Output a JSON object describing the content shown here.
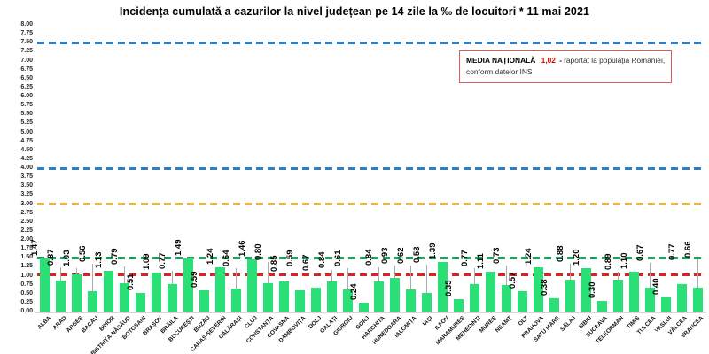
{
  "title": "Incidența cumulată a cazurilor la nivel județean pe 14 zile la ‰ de locuitori *  11 mai 2021",
  "legend": {
    "label": "MEDIA NAȚIONALĂ",
    "value": "1,02",
    "separator": "-",
    "text_line1": "raportat la populația României,",
    "text_line2": "conform datelor INS"
  },
  "chart_data": {
    "type": "bar",
    "title": "Incidența cumulată a cazurilor la nivel județean pe 14 zile la ‰ de locuitori * 11 mai 2021",
    "xlabel": "",
    "ylabel": "",
    "ylim": [
      0,
      8
    ],
    "ytick_step": 0.25,
    "grid": false,
    "bar_color": "#2ADF76",
    "value_label_format": "0.00",
    "categories": [
      "ALBA",
      "ARAD",
      "ARGEȘ",
      "BACĂU",
      "BIHOR",
      "BISTRIȚA-NĂSĂUD",
      "BOTOȘANI",
      "BRAȘOV",
      "BRĂILA",
      "BUCUREȘTI",
      "BUZĂU",
      "CARAȘ-SEVERIN",
      "CĂLĂRAȘI",
      "CLUJ",
      "CONSTANȚA",
      "COVASNA",
      "DÂMBOVIȚA",
      "DOLJ",
      "GALAȚI",
      "GIURGIU",
      "GORJ",
      "HARGHITA",
      "HUNEDOARA",
      "IALOMIȚA",
      "IAȘI",
      "ILFOV",
      "MARAMUREȘ",
      "MEHEDINȚI",
      "MUREȘ",
      "NEAMȚ",
      "OLT",
      "PRAHOVA",
      "SATU MARE",
      "SĂLAJ",
      "SIBIU",
      "SUCEAVA",
      "TELEORMAN",
      "TIMIȘ",
      "TULCEA",
      "VASLUI",
      "VÂLCEA",
      "VRANCEA"
    ],
    "values": [
      1.47,
      0.87,
      1.03,
      0.56,
      1.13,
      0.79,
      0.51,
      1.09,
      0.77,
      1.49,
      0.59,
      1.24,
      0.64,
      1.46,
      0.8,
      0.85,
      0.59,
      0.67,
      0.84,
      0.61,
      0.24,
      0.84,
      0.93,
      0.62,
      0.53,
      1.39,
      0.35,
      0.77,
      1.11,
      0.73,
      0.57,
      1.24,
      0.38,
      0.88,
      1.2,
      0.3,
      0.89,
      1.1,
      0.67,
      0.4,
      0.77,
      0.66
    ],
    "reference_lines": [
      {
        "value": 7.5,
        "color": "#2F7EC3",
        "style": "dashed"
      },
      {
        "value": 4.0,
        "color": "#2F7EC3",
        "style": "dashed"
      },
      {
        "value": 3.0,
        "color": "#E9B63C",
        "style": "dashed"
      },
      {
        "value": 1.5,
        "color": "#1AA05F",
        "style": "dashed"
      },
      {
        "value": 1.02,
        "color": "#E01F1F",
        "style": "dashed",
        "label": "MEDIA NAȚIONALĂ"
      }
    ]
  }
}
